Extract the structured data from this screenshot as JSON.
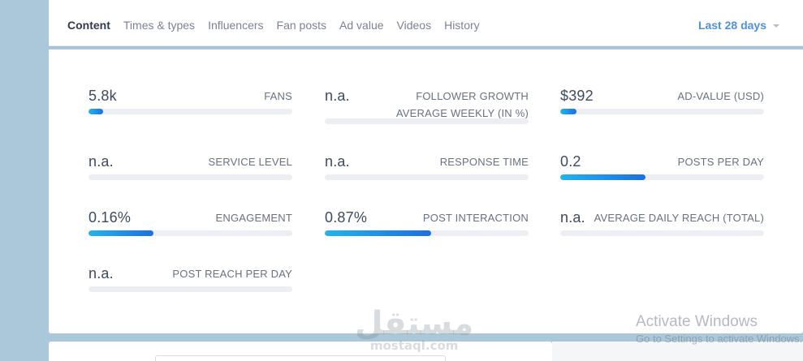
{
  "tabs": [
    {
      "label": "Content",
      "active": true
    },
    {
      "label": "Times & types",
      "active": false
    },
    {
      "label": "Influencers",
      "active": false
    },
    {
      "label": "Fan posts",
      "active": false
    },
    {
      "label": "Ad value",
      "active": false
    },
    {
      "label": "Videos",
      "active": false
    },
    {
      "label": "History",
      "active": false
    }
  ],
  "date_range": {
    "label": "Last 28 days"
  },
  "metrics": [
    {
      "value": "5.8k",
      "label": "Fans",
      "fill_fraction": 0.07
    },
    {
      "value": "n.a.",
      "label": "Follower growth average weekly (in %)",
      "fill_fraction": 0
    },
    {
      "value": "$392",
      "label": "Ad-value (USD)",
      "fill_fraction": 0.08
    },
    {
      "value": "n.a.",
      "label": "Service level",
      "fill_fraction": 0
    },
    {
      "value": "n.a.",
      "label": "Response time",
      "fill_fraction": 0
    },
    {
      "value": "0.2",
      "label": "Posts per day",
      "fill_fraction": 0.42
    },
    {
      "value": "0.16%",
      "label": "Engagement",
      "fill_fraction": 0.32
    },
    {
      "value": "0.87%",
      "label": "Post interaction",
      "fill_fraction": 0.52
    },
    {
      "value": "n.a.",
      "label": "Average daily reach (total)",
      "fill_fraction": 0
    },
    {
      "value": "n.a.",
      "label": "Post reach per day",
      "fill_fraction": 0
    }
  ],
  "watermark": {
    "arabic": "مستقل",
    "latin": "mostaql.com"
  },
  "os_notice": {
    "title": "Activate Windows",
    "subtitle": "Go to Settings to activate Windows."
  },
  "colors": {
    "accent": "#4f8fe0",
    "bar_start": "#22b4ee",
    "bar_end": "#1d6fe0",
    "page_bg": "#aac8da"
  }
}
